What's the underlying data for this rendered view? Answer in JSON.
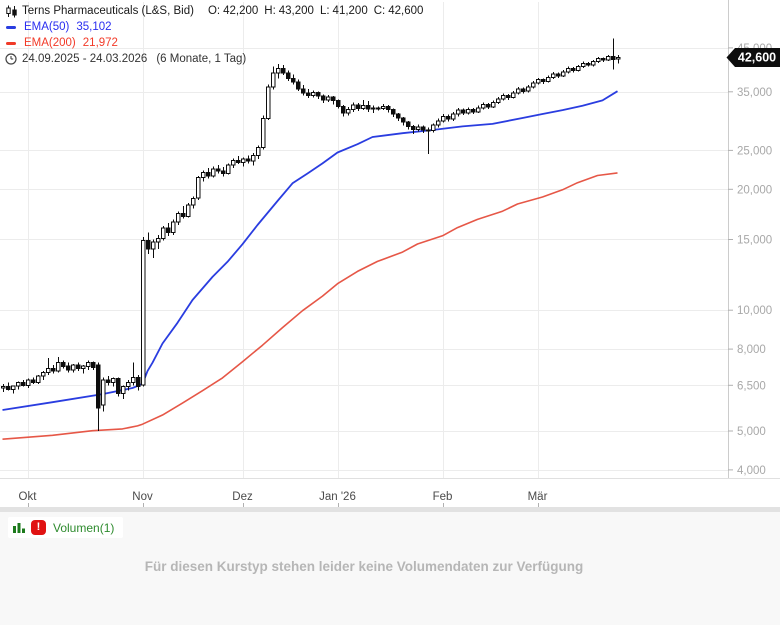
{
  "header": {
    "title": "Terns Pharmaceuticals (L&S, Bid)",
    "o_label": "O:",
    "o": "42,200",
    "h_label": "H:",
    "h": "43,200",
    "l_label": "L:",
    "l": "41,200",
    "c_label": "C:",
    "c": "42,600",
    "ema50_label": "EMA(50)",
    "ema50_value": "35,102",
    "ema200_label": "EMA(200)",
    "ema200_value": "21,972",
    "date_range": "24.09.2025 - 24.03.2026",
    "period": "(6 Monate, 1 Tag)"
  },
  "volume": {
    "label": "Volumen(1)",
    "alert_glyph": "!",
    "message": "Für diesen Kurstyp stehen leider keine Volumendaten zur Verfügung"
  },
  "colors": {
    "candle": "#0d0d0d",
    "ema50_line": "#2a3de0",
    "ema50_text": "#2a2df0",
    "ema200_line": "#e65747",
    "ema200_text": "#f23a28",
    "grid": "#ececec",
    "axis_line": "#cccccc",
    "tick": "#b0b0b0",
    "axis_text": "#a8a8a8",
    "month_text": "#4a4a4a",
    "badge_bg": "#0d0d0d",
    "badge_text": "#ffffff",
    "volume_green": "#2e8b2e",
    "icon_green": "#1c7a1c",
    "alert_red": "#e01212",
    "message_gray": "#b6b6b6"
  },
  "chart_data": {
    "type": "candlestick",
    "title": "Terns Pharmaceuticals (L&S, Bid)",
    "date_range": "24.09.2025 - 24.03.2026",
    "timeframe": "6 Monate, 1 Tag",
    "current_price": 42600,
    "current_price_label": "42,600",
    "last_bar": {
      "open": 42200,
      "high": 43200,
      "low": 41200,
      "close": 42600
    },
    "y_axis": {
      "scale": "log",
      "range": [
        3819,
        59240
      ],
      "ticks": [
        45000,
        35000,
        25000,
        20000,
        15000,
        10000,
        8000,
        6500,
        5000,
        4000
      ],
      "tick_labels": [
        "45,000",
        "35,000",
        "25,000",
        "20,000",
        "15,000",
        "10,000",
        "8,000",
        "6,500",
        "5,000",
        "4,000"
      ]
    },
    "x_axis": {
      "ticks": [
        {
          "label": "Okt",
          "i": 5
        },
        {
          "label": "Nov",
          "i": 28
        },
        {
          "label": "Dez",
          "i": 48
        },
        {
          "label": "Jan '26",
          "i": 67
        },
        {
          "label": "Feb",
          "i": 88
        },
        {
          "label": "Mär",
          "i": 107
        }
      ]
    },
    "indicators": [
      {
        "name": "EMA(50)",
        "value": 35102,
        "color": "#2a3de0",
        "width": 1.8,
        "points": [
          [
            0,
            5640
          ],
          [
            10,
            5900
          ],
          [
            20,
            6180
          ],
          [
            26,
            6400
          ],
          [
            28,
            6550
          ],
          [
            29,
            7050
          ],
          [
            30,
            7400
          ],
          [
            32,
            8260
          ],
          [
            35,
            9300
          ],
          [
            38,
            10600
          ],
          [
            42,
            12100
          ],
          [
            45,
            13200
          ],
          [
            48,
            14600
          ],
          [
            51,
            16300
          ],
          [
            55,
            18700
          ],
          [
            58,
            20700
          ],
          [
            61,
            21900
          ],
          [
            64,
            23200
          ],
          [
            67,
            24700
          ],
          [
            71,
            25900
          ],
          [
            74,
            27000
          ],
          [
            80,
            27600
          ],
          [
            86,
            28100
          ],
          [
            92,
            28700
          ],
          [
            98,
            29100
          ],
          [
            104,
            30100
          ],
          [
            108,
            30800
          ],
          [
            112,
            31500
          ],
          [
            116,
            32300
          ],
          [
            120,
            33300
          ],
          [
            123,
            35102
          ]
        ]
      },
      {
        "name": "EMA(200)",
        "value": 21972,
        "color": "#e65747",
        "width": 1.6,
        "points": [
          [
            0,
            4770
          ],
          [
            10,
            4880
          ],
          [
            18,
            5010
          ],
          [
            24,
            5060
          ],
          [
            27,
            5150
          ],
          [
            28,
            5200
          ],
          [
            32,
            5480
          ],
          [
            36,
            5870
          ],
          [
            40,
            6300
          ],
          [
            44,
            6780
          ],
          [
            48,
            7440
          ],
          [
            52,
            8180
          ],
          [
            56,
            9050
          ],
          [
            60,
            9970
          ],
          [
            64,
            10840
          ],
          [
            67,
            11640
          ],
          [
            71,
            12490
          ],
          [
            75,
            13230
          ],
          [
            80,
            13950
          ],
          [
            83,
            14620
          ],
          [
            88,
            15320
          ],
          [
            91,
            16060
          ],
          [
            95,
            16830
          ],
          [
            100,
            17640
          ],
          [
            103,
            18380
          ],
          [
            108,
            19140
          ],
          [
            112,
            19940
          ],
          [
            115,
            20780
          ],
          [
            119,
            21650
          ],
          [
            123,
            21972
          ]
        ]
      }
    ],
    "candles_format": [
      "open",
      "high",
      "low",
      "close"
    ],
    "candles": [
      [
        6400,
        6550,
        6250,
        6450
      ],
      [
        6450,
        6600,
        6300,
        6350
      ],
      [
        6350,
        6500,
        6200,
        6480
      ],
      [
        6480,
        6650,
        6350,
        6600
      ],
      [
        6600,
        6700,
        6450,
        6500
      ],
      [
        6500,
        6750,
        6400,
        6700
      ],
      [
        6700,
        6800,
        6550,
        6600
      ],
      [
        6600,
        6900,
        6550,
        6850
      ],
      [
        6850,
        7050,
        6700,
        7000
      ],
      [
        7000,
        7600,
        6900,
        7150
      ],
      [
        7150,
        7300,
        6950,
        7050
      ],
      [
        7050,
        7650,
        7000,
        7400
      ],
      [
        7400,
        7500,
        7150,
        7250
      ],
      [
        7250,
        7400,
        7000,
        7100
      ],
      [
        7100,
        7350,
        7000,
        7300
      ],
      [
        7300,
        7400,
        7050,
        7150
      ],
      [
        7150,
        7300,
        6950,
        7250
      ],
      [
        7250,
        7500,
        7100,
        7400
      ],
      [
        7400,
        7450,
        7100,
        7200
      ],
      [
        7300,
        7400,
        5000,
        5700
      ],
      [
        5800,
        6800,
        5600,
        6700
      ],
      [
        6700,
        6850,
        6500,
        6600
      ],
      [
        6600,
        6800,
        6450,
        6750
      ],
      [
        6750,
        6800,
        6100,
        6200
      ],
      [
        6200,
        6500,
        6000,
        6450
      ],
      [
        6450,
        6700,
        6300,
        6600
      ],
      [
        6600,
        7400,
        6500,
        6800
      ],
      [
        6800,
        6900,
        6300,
        6450
      ],
      [
        6500,
        15200,
        6450,
        14900
      ],
      [
        14900,
        15600,
        13800,
        14200
      ],
      [
        14200,
        15000,
        13500,
        14800
      ],
      [
        14800,
        15400,
        14200,
        15100
      ],
      [
        15100,
        16200,
        14900,
        16000
      ],
      [
        16000,
        16500,
        15300,
        15600
      ],
      [
        15600,
        16800,
        15400,
        16600
      ],
      [
        16600,
        17600,
        16300,
        17400
      ],
      [
        17400,
        18200,
        16900,
        17100
      ],
      [
        17100,
        18500,
        17000,
        18300
      ],
      [
        18300,
        19200,
        17900,
        19000
      ],
      [
        19000,
        21600,
        18800,
        21400
      ],
      [
        21400,
        22300,
        20900,
        22000
      ],
      [
        22000,
        22600,
        21300,
        21600
      ],
      [
        21600,
        22800,
        21400,
        22500
      ],
      [
        22500,
        23000,
        21900,
        22200
      ],
      [
        22200,
        22700,
        21500,
        21900
      ],
      [
        21900,
        23200,
        21800,
        23000
      ],
      [
        23000,
        23900,
        22600,
        23600
      ],
      [
        23600,
        24200,
        23100,
        23300
      ],
      [
        23300,
        24000,
        22800,
        23800
      ],
      [
        23800,
        24300,
        23200,
        23500
      ],
      [
        23500,
        24600,
        22900,
        24300
      ],
      [
        24300,
        25700,
        23800,
        25400
      ],
      [
        25400,
        30500,
        25100,
        30000
      ],
      [
        30000,
        36500,
        29800,
        36000
      ],
      [
        36000,
        40500,
        35500,
        39000
      ],
      [
        39000,
        41000,
        37800,
        40000
      ],
      [
        40000,
        40800,
        38500,
        39000
      ],
      [
        39000,
        39500,
        37200,
        37800
      ],
      [
        37800,
        38600,
        36500,
        37000
      ],
      [
        37000,
        37600,
        35200,
        35600
      ],
      [
        35600,
        36400,
        34300,
        34800
      ],
      [
        34800,
        35600,
        33800,
        34300
      ],
      [
        34300,
        35300,
        33900,
        34900
      ],
      [
        34900,
        35100,
        33600,
        34200
      ],
      [
        34200,
        34500,
        32800,
        33400
      ],
      [
        33400,
        34400,
        33000,
        34000
      ],
      [
        34000,
        34200,
        32500,
        33300
      ],
      [
        33300,
        33500,
        31800,
        32200
      ],
      [
        32200,
        32400,
        30400,
        31000
      ],
      [
        31000,
        32100,
        30500,
        31600
      ],
      [
        31600,
        32900,
        31200,
        32400
      ],
      [
        32400,
        32800,
        31300,
        31800
      ],
      [
        31800,
        33400,
        31500,
        32300
      ],
      [
        32300,
        33200,
        31200,
        31700
      ],
      [
        31700,
        32300,
        31000,
        31900
      ],
      [
        31900,
        32200,
        31400,
        31800
      ],
      [
        31800,
        32600,
        31500,
        32200
      ],
      [
        32200,
        32400,
        31100,
        31600
      ],
      [
        31600,
        31800,
        30300,
        30800
      ],
      [
        30800,
        31000,
        29600,
        30100
      ],
      [
        30100,
        30300,
        28800,
        29400
      ],
      [
        29400,
        29600,
        28200,
        28700
      ],
      [
        28700,
        28900,
        27500,
        28200
      ],
      [
        28200,
        29000,
        27900,
        28600
      ],
      [
        28600,
        28800,
        27600,
        28100
      ],
      [
        28100,
        28500,
        24500,
        28000
      ],
      [
        28000,
        29200,
        27700,
        28900
      ],
      [
        28900,
        30000,
        28500,
        29600
      ],
      [
        29600,
        30800,
        29300,
        30400
      ],
      [
        30400,
        30700,
        29500,
        29900
      ],
      [
        29900,
        31200,
        29600,
        30800
      ],
      [
        30800,
        31900,
        30400,
        31500
      ],
      [
        31500,
        31800,
        30600,
        31000
      ],
      [
        31000,
        32000,
        30700,
        31600
      ],
      [
        31600,
        31900,
        30800,
        31200
      ],
      [
        31200,
        32300,
        31000,
        31900
      ],
      [
        31900,
        32900,
        31600,
        32500
      ],
      [
        32500,
        32800,
        31700,
        32100
      ],
      [
        32100,
        33300,
        31900,
        32900
      ],
      [
        32900,
        34000,
        32600,
        33600
      ],
      [
        33600,
        34700,
        33300,
        34300
      ],
      [
        34300,
        34600,
        33400,
        33900
      ],
      [
        33900,
        35200,
        33700,
        34800
      ],
      [
        34800,
        36000,
        34500,
        35600
      ],
      [
        35600,
        35900,
        34700,
        35100
      ],
      [
        35100,
        36400,
        34900,
        36000
      ],
      [
        36000,
        37200,
        35700,
        36800
      ],
      [
        36800,
        37900,
        36500,
        37500
      ],
      [
        37500,
        37800,
        36600,
        37100
      ],
      [
        37100,
        38400,
        36900,
        38000
      ],
      [
        38000,
        39200,
        37700,
        38800
      ],
      [
        38800,
        39100,
        37900,
        38300
      ],
      [
        38300,
        39600,
        38100,
        39200
      ],
      [
        39200,
        40400,
        38900,
        40000
      ],
      [
        40000,
        40300,
        39100,
        39500
      ],
      [
        39500,
        40800,
        39300,
        40400
      ],
      [
        40400,
        41600,
        40100,
        41200
      ],
      [
        41200,
        41500,
        40400,
        40800
      ],
      [
        40800,
        42000,
        40500,
        41600
      ],
      [
        41600,
        42700,
        41300,
        42300
      ],
      [
        42300,
        42600,
        41500,
        42000
      ],
      [
        42000,
        43200,
        41800,
        42800
      ],
      [
        42800,
        47500,
        39800,
        42100
      ],
      [
        42200,
        43200,
        41200,
        42600
      ]
    ]
  }
}
